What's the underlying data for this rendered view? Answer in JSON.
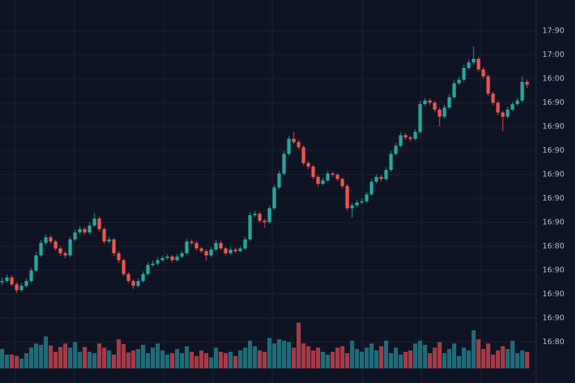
{
  "chart_data": {
    "type": "candlestick",
    "up_color": "#26a69a",
    "down_color": "#ef5350",
    "volume_up_color": "#1f6b78",
    "volume_down_color": "#a63a47",
    "grid": true,
    "ylim": [
      -1.71,
      14.29
    ],
    "yticks": [
      {
        "value": 13,
        "label": "17:90"
      },
      {
        "value": 12,
        "label": "17:00"
      },
      {
        "value": 11,
        "label": "16:00"
      },
      {
        "value": 10,
        "label": "16:90"
      },
      {
        "value": 9,
        "label": "16:90"
      },
      {
        "value": 8,
        "label": "16:90"
      },
      {
        "value": 7,
        "label": "16:90"
      },
      {
        "value": 6,
        "label": "16:90"
      },
      {
        "value": 5,
        "label": "16:90"
      },
      {
        "value": 4,
        "label": "16:80"
      },
      {
        "value": 3,
        "label": "16:90"
      },
      {
        "value": 2,
        "label": "16:90"
      },
      {
        "value": 1,
        "label": "16:90"
      },
      {
        "value": 0,
        "label": "16:80"
      }
    ],
    "ohlc": [
      [
        2.5,
        2.7,
        2.38,
        2.55
      ],
      [
        2.55,
        2.83,
        2.48,
        2.7
      ],
      [
        2.7,
        2.78,
        2.33,
        2.41
      ],
      [
        2.41,
        2.5,
        2.05,
        2.17
      ],
      [
        2.17,
        2.46,
        2.1,
        2.35
      ],
      [
        2.35,
        2.66,
        2.28,
        2.55
      ],
      [
        2.55,
        3.1,
        2.48,
        2.99
      ],
      [
        2.99,
        3.75,
        2.92,
        3.62
      ],
      [
        3.62,
        4.26,
        3.55,
        4.14
      ],
      [
        4.14,
        4.5,
        4.05,
        4.38
      ],
      [
        4.38,
        4.46,
        4.1,
        4.2
      ],
      [
        4.2,
        4.28,
        3.82,
        3.91
      ],
      [
        3.91,
        3.99,
        3.6,
        3.71
      ],
      [
        3.71,
        3.8,
        3.5,
        3.62
      ],
      [
        3.62,
        4.4,
        3.55,
        4.29
      ],
      [
        4.29,
        4.7,
        4.22,
        4.58
      ],
      [
        4.58,
        4.85,
        4.5,
        4.72
      ],
      [
        4.72,
        4.8,
        4.48,
        4.58
      ],
      [
        4.58,
        5.0,
        4.5,
        4.87
      ],
      [
        4.87,
        5.4,
        4.8,
        5.16
      ],
      [
        5.16,
        5.24,
        4.62,
        4.72
      ],
      [
        4.72,
        4.8,
        4.1,
        4.2
      ],
      [
        4.2,
        4.4,
        4.12,
        4.29
      ],
      [
        4.29,
        4.36,
        3.6,
        3.71
      ],
      [
        3.71,
        3.8,
        3.3,
        3.42
      ],
      [
        3.42,
        3.5,
        2.75,
        2.84
      ],
      [
        2.84,
        2.92,
        2.45,
        2.55
      ],
      [
        2.55,
        2.62,
        2.22,
        2.35
      ],
      [
        2.35,
        2.66,
        2.28,
        2.55
      ],
      [
        2.55,
        2.95,
        2.48,
        2.84
      ],
      [
        2.84,
        3.34,
        2.78,
        3.22
      ],
      [
        3.22,
        3.4,
        3.15,
        3.28
      ],
      [
        3.28,
        3.54,
        3.2,
        3.42
      ],
      [
        3.42,
        3.62,
        3.35,
        3.51
      ],
      [
        3.51,
        3.68,
        3.44,
        3.57
      ],
      [
        3.57,
        3.64,
        3.34,
        3.42
      ],
      [
        3.42,
        3.68,
        3.36,
        3.57
      ],
      [
        3.57,
        3.82,
        3.5,
        3.71
      ],
      [
        3.71,
        4.32,
        3.64,
        4.2
      ],
      [
        4.2,
        4.28,
        4.06,
        4.14
      ],
      [
        4.14,
        4.22,
        3.82,
        3.91
      ],
      [
        3.91,
        3.98,
        3.72,
        3.8
      ],
      [
        3.8,
        3.88,
        3.4,
        3.62
      ],
      [
        3.62,
        3.96,
        3.55,
        3.86
      ],
      [
        3.86,
        4.26,
        3.8,
        4.14
      ],
      [
        4.14,
        4.22,
        3.84,
        3.91
      ],
      [
        3.91,
        3.98,
        3.62,
        3.71
      ],
      [
        3.71,
        3.96,
        3.64,
        3.86
      ],
      [
        3.86,
        3.94,
        3.72,
        3.8
      ],
      [
        3.8,
        4.0,
        3.74,
        3.91
      ],
      [
        3.91,
        4.4,
        3.84,
        4.29
      ],
      [
        4.29,
        5.42,
        4.22,
        5.3
      ],
      [
        5.3,
        5.48,
        5.22,
        5.36
      ],
      [
        5.36,
        5.44,
        4.98,
        5.07
      ],
      [
        5.07,
        5.15,
        4.78,
        5.01
      ],
      [
        5.01,
        5.7,
        4.94,
        5.59
      ],
      [
        5.59,
        6.58,
        5.52,
        6.46
      ],
      [
        6.46,
        7.16,
        6.38,
        7.04
      ],
      [
        7.04,
        7.98,
        6.96,
        7.86
      ],
      [
        7.86,
        8.62,
        7.78,
        8.49
      ],
      [
        8.49,
        8.78,
        8.26,
        8.35
      ],
      [
        8.35,
        8.44,
        8.04,
        8.14
      ],
      [
        8.14,
        8.22,
        7.38,
        7.48
      ],
      [
        7.48,
        7.56,
        7.22,
        7.33
      ],
      [
        7.33,
        7.4,
        6.8,
        6.9
      ],
      [
        6.9,
        6.98,
        6.48,
        6.61
      ],
      [
        6.61,
        6.86,
        6.54,
        6.75
      ],
      [
        6.75,
        7.16,
        6.68,
        7.04
      ],
      [
        7.04,
        7.12,
        6.9,
        6.99
      ],
      [
        6.99,
        7.06,
        6.72,
        6.81
      ],
      [
        6.81,
        6.88,
        6.42,
        6.52
      ],
      [
        6.52,
        6.6,
        5.5,
        5.59
      ],
      [
        5.59,
        5.82,
        5.2,
        5.71
      ],
      [
        5.71,
        5.94,
        5.64,
        5.83
      ],
      [
        5.83,
        6.0,
        5.76,
        5.88
      ],
      [
        5.88,
        6.28,
        5.8,
        6.17
      ],
      [
        6.17,
        6.82,
        6.1,
        6.7
      ],
      [
        6.7,
        7.02,
        6.62,
        6.9
      ],
      [
        6.9,
        6.98,
        6.7,
        6.81
      ],
      [
        6.81,
        7.3,
        6.74,
        7.19
      ],
      [
        7.19,
        7.98,
        7.12,
        7.86
      ],
      [
        7.86,
        8.32,
        7.78,
        8.2
      ],
      [
        8.2,
        8.76,
        8.12,
        8.64
      ],
      [
        8.64,
        8.72,
        8.46,
        8.55
      ],
      [
        8.55,
        8.62,
        8.38,
        8.49
      ],
      [
        8.49,
        8.9,
        8.42,
        8.78
      ],
      [
        8.78,
        10.06,
        8.7,
        9.94
      ],
      [
        9.94,
        10.2,
        9.86,
        10.09
      ],
      [
        10.09,
        10.18,
        9.9,
        10.0
      ],
      [
        10.0,
        10.08,
        9.6,
        9.71
      ],
      [
        9.71,
        9.8,
        9.02,
        9.42
      ],
      [
        9.42,
        9.92,
        9.34,
        9.8
      ],
      [
        9.8,
        10.36,
        9.72,
        10.23
      ],
      [
        10.23,
        10.94,
        10.16,
        10.81
      ],
      [
        10.81,
        11.08,
        10.74,
        10.96
      ],
      [
        10.96,
        11.58,
        10.88,
        11.45
      ],
      [
        11.45,
        11.8,
        11.38,
        11.68
      ],
      [
        11.68,
        12.35,
        11.6,
        11.83
      ],
      [
        11.83,
        11.92,
        11.3,
        11.39
      ],
      [
        11.39,
        11.48,
        11.0,
        11.1
      ],
      [
        11.1,
        11.18,
        10.28,
        10.38
      ],
      [
        10.38,
        10.46,
        9.9,
        10.0
      ],
      [
        10.0,
        10.08,
        9.48,
        9.59
      ],
      [
        9.59,
        9.66,
        8.8,
        9.42
      ],
      [
        9.42,
        9.82,
        9.34,
        9.71
      ],
      [
        9.71,
        10.04,
        9.64,
        9.94
      ],
      [
        9.94,
        10.2,
        9.86,
        10.09
      ],
      [
        10.09,
        11.1,
        10.02,
        10.87
      ],
      [
        10.87,
        10.96,
        10.62,
        10.75
      ]
    ],
    "volume": [
      28,
      20,
      20,
      18,
      14,
      22,
      30,
      36,
      34,
      46,
      33,
      24,
      31,
      36,
      30,
      38,
      24,
      31,
      24,
      22,
      36,
      30,
      26,
      20,
      42,
      35,
      23,
      26,
      28,
      34,
      22,
      30,
      36,
      26,
      20,
      22,
      28,
      22,
      32,
      24,
      18,
      26,
      22,
      16,
      30,
      24,
      22,
      24,
      18,
      26,
      30,
      40,
      32,
      26,
      24,
      44,
      36,
      42,
      40,
      38,
      30,
      66,
      36,
      32,
      26,
      30,
      24,
      20,
      24,
      30,
      32,
      22,
      40,
      28,
      24,
      30,
      36,
      26,
      32,
      40,
      22,
      30,
      20,
      24,
      26,
      36,
      40,
      34,
      22,
      30,
      38,
      22,
      28,
      36,
      18,
      30,
      26,
      55,
      42,
      28,
      36,
      20,
      26,
      32,
      28,
      40,
      22,
      26,
      24
    ]
  }
}
